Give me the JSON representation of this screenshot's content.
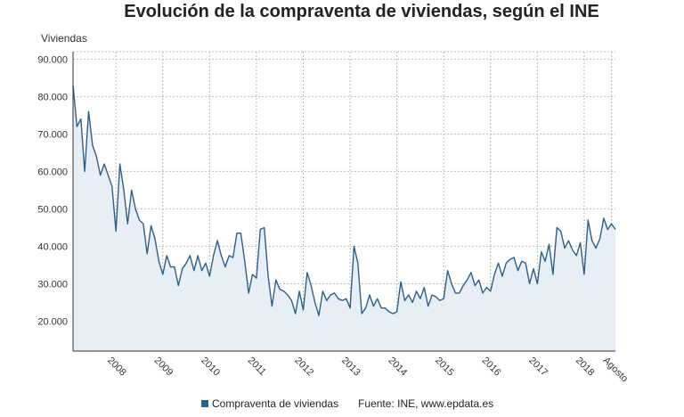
{
  "chart_data": {
    "type": "area",
    "title": "Evolución de la compraventa de viviendas, según el INE",
    "ylabel": "Viviendas",
    "xlabel": "",
    "ylim": [
      12000,
      92000
    ],
    "yticks": [
      {
        "value": 20000,
        "label": "20.000"
      },
      {
        "value": 30000,
        "label": "30.000"
      },
      {
        "value": 40000,
        "label": "40.000"
      },
      {
        "value": 50000,
        "label": "50.000"
      },
      {
        "value": 60000,
        "label": "60.000"
      },
      {
        "value": 70000,
        "label": "70.000"
      },
      {
        "value": 80000,
        "label": "80.000"
      },
      {
        "value": 90000,
        "label": "90.000"
      }
    ],
    "xticks": [
      {
        "index": 11,
        "label": "2008"
      },
      {
        "index": 23,
        "label": "2009"
      },
      {
        "index": 35,
        "label": "2010"
      },
      {
        "index": 47,
        "label": "2011"
      },
      {
        "index": 59,
        "label": "2012"
      },
      {
        "index": 71,
        "label": "2013"
      },
      {
        "index": 83,
        "label": "2014"
      },
      {
        "index": 95,
        "label": "2015"
      },
      {
        "index": 107,
        "label": "2016"
      },
      {
        "index": 119,
        "label": "2017"
      },
      {
        "index": 131,
        "label": "2018"
      },
      {
        "index": 138,
        "label": "Agosto"
      }
    ],
    "grid": true,
    "legend_position": "bottom",
    "line_color": "#2e5f86",
    "fill_color": "#e8eef6",
    "series": [
      {
        "name": "Compraventa de viviendas",
        "values": [
          83000,
          72000,
          74000,
          60000,
          76000,
          67000,
          64000,
          59000,
          62000,
          59000,
          56000,
          44000,
          62000,
          55000,
          46000,
          55000,
          50000,
          47000,
          46000,
          38000,
          45500,
          42000,
          36000,
          32500,
          37500,
          34500,
          34500,
          29500,
          34000,
          35500,
          37500,
          33500,
          37500,
          33500,
          35500,
          32000,
          37500,
          41500,
          37500,
          34500,
          37500,
          37000,
          43500,
          43500,
          36000,
          27500,
          32500,
          31500,
          44500,
          45000,
          32000,
          24000,
          31000,
          28500,
          28000,
          27000,
          25500,
          22000,
          28000,
          23000,
          33000,
          29500,
          25000,
          21500,
          28000,
          25500,
          27000,
          27500,
          26000,
          25500,
          26000,
          23500,
          40000,
          35500,
          22000,
          23500,
          27000,
          24000,
          26000,
          23500,
          23500,
          22500,
          22000,
          22500,
          30500,
          25500,
          27000,
          25000,
          28000,
          26000,
          29000,
          24000,
          27000,
          26500,
          25500,
          26000,
          33500,
          30000,
          27500,
          27500,
          29500,
          31000,
          33000,
          29500,
          31000,
          27500,
          29000,
          28000,
          32500,
          35500,
          32000,
          35500,
          36500,
          37000,
          33500,
          36000,
          35500,
          30000,
          34000,
          30000,
          38500,
          36000,
          40500,
          32500,
          45000,
          44000,
          39500,
          41500,
          39000,
          37500,
          41000,
          32500,
          47000,
          41500,
          39500,
          42000,
          47500,
          44500,
          46000,
          44500
        ]
      }
    ]
  },
  "legend": {
    "series_label": "Compraventa de viviendas",
    "source": "Fuente: INE, www.epdata.es"
  }
}
